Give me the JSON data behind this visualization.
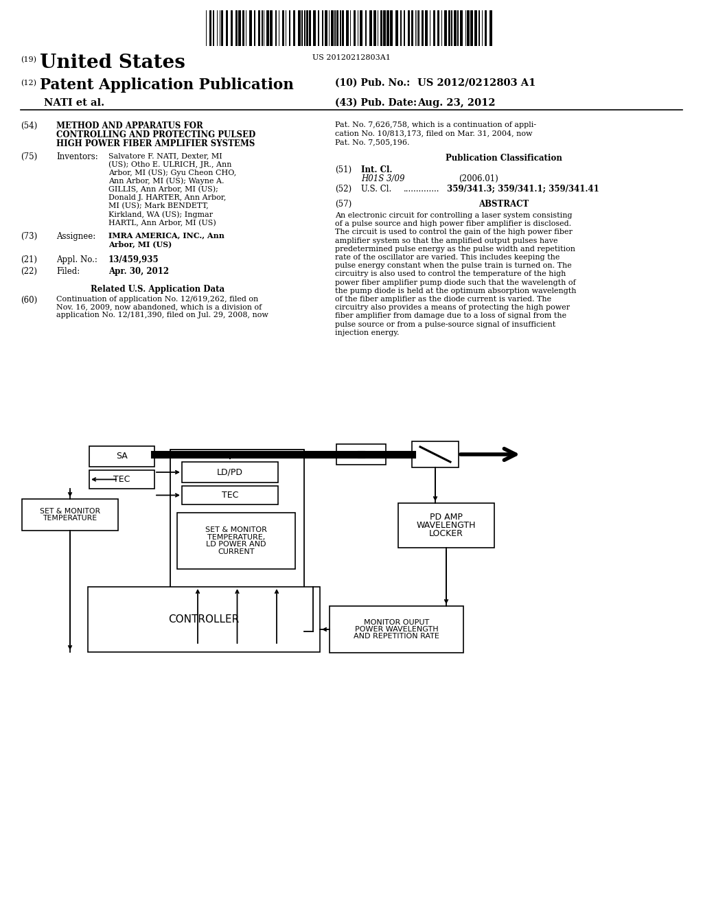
{
  "barcode_text": "US 20120212803A1",
  "field54_label": "METHOD AND APPARATUS FOR\nCONTROLLING AND PROTECTING PULSED\nHIGH POWER FIBER AMPLIFIER SYSTEMS",
  "field75_val": "Salvatore F. NATI, Dexter, MI\n(US); Otho E. ULRICH, JR., Ann\nArbor, MI (US); Gyu Cheon CHO,\nAnn Arbor, MI (US); Wayne A.\nGILLIS, Ann Arbor, MI (US);\nDonald J. HARTER, Ann Arbor,\nMI (US); Mark BENDETT,\nKirkland, WA (US); Ingmar\nHARTL, Ann Arbor, MI (US)",
  "field73_val": "IMRA AMERICA, INC., Ann\nArbor, MI (US)",
  "field21_val": "13/459,935",
  "field22_val": "Apr. 30, 2012",
  "field60_val": "Continuation of application No. 12/619,262, filed on\nNov. 16, 2009, now abandoned, which is a division of\napplication No. 12/181,390, filed on Jul. 29, 2008, now",
  "right_cont": "Pat. No. 7,626,758, which is a continuation of appli-\ncation No. 10/813,173, filed on Mar. 31, 2004, now\nPat. No. 7,505,196.",
  "field51_class": "H01S 3/09",
  "field51_year": "(2006.01)",
  "field52_val": "359/341.3; 359/341.1; 359/341.41",
  "abstract_text": "An electronic circuit for controlling a laser system consisting\nof a pulse source and high power fiber amplifier is disclosed.\nThe circuit is used to control the gain of the high power fiber\namplifier system so that the amplified output pulses have\npredetermined pulse energy as the pulse width and repetition\nrate of the oscillator are varied. This includes keeping the\npulse energy constant when the pulse train is turned on. The\ncircuitry is also used to control the temperature of the high\npower fiber amplifier pump diode such that the wavelength of\nthe pump diode is held at the optimum absorption wavelength\nof the fiber amplifier as the diode current is varied. The\ncircuitry also provides a means of protecting the high power\nfiber amplifier from damage due to a loss of signal from the\npulse source or from a pulse-source signal of insufficient\ninjection energy.",
  "bg_color": "#ffffff"
}
